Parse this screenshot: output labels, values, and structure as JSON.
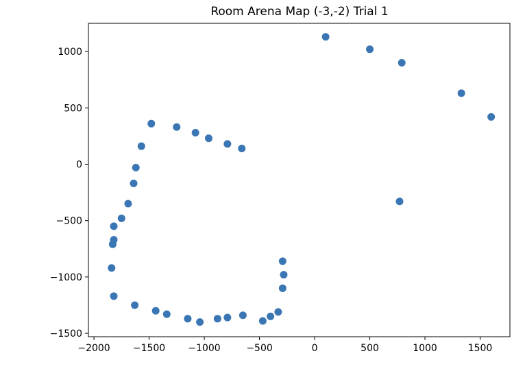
{
  "chart_data": {
    "type": "scatter",
    "title": "Room Arena Map (-3,-2) Trial 1",
    "xlabel": "",
    "ylabel": "",
    "xlim": [
      -2050,
      1770
    ],
    "ylim": [
      -1530,
      1250
    ],
    "grid": false,
    "xticks": [
      -2000,
      -1500,
      -1000,
      -500,
      0,
      500,
      1000,
      1500
    ],
    "yticks": [
      -1500,
      -1000,
      -500,
      0,
      500,
      1000
    ],
    "xtick_labels": [
      "−2000",
      "−1500",
      "−1000",
      "−500",
      "0",
      "500",
      "1000",
      "1500"
    ],
    "ytick_labels": [
      "−1500",
      "−1000",
      "−500",
      "0",
      "500",
      "1000"
    ],
    "marker_color": "#3a76b3",
    "points": [
      {
        "x": 100,
        "y": 1130
      },
      {
        "x": 500,
        "y": 1020
      },
      {
        "x": 790,
        "y": 900
      },
      {
        "x": 1330,
        "y": 630
      },
      {
        "x": 1600,
        "y": 420
      },
      {
        "x": 770,
        "y": -330
      },
      {
        "x": -1480,
        "y": 360
      },
      {
        "x": -1250,
        "y": 330
      },
      {
        "x": -1080,
        "y": 280
      },
      {
        "x": -960,
        "y": 230
      },
      {
        "x": -790,
        "y": 180
      },
      {
        "x": -660,
        "y": 140
      },
      {
        "x": -1570,
        "y": 160
      },
      {
        "x": -1620,
        "y": -30
      },
      {
        "x": -1640,
        "y": -170
      },
      {
        "x": -1690,
        "y": -350
      },
      {
        "x": -1750,
        "y": -480
      },
      {
        "x": -1820,
        "y": -550
      },
      {
        "x": -1820,
        "y": -670
      },
      {
        "x": -1830,
        "y": -710
      },
      {
        "x": -1840,
        "y": -920
      },
      {
        "x": -1820,
        "y": -1170
      },
      {
        "x": -1630,
        "y": -1250
      },
      {
        "x": -1440,
        "y": -1300
      },
      {
        "x": -1340,
        "y": -1330
      },
      {
        "x": -1150,
        "y": -1370
      },
      {
        "x": -1040,
        "y": -1400
      },
      {
        "x": -880,
        "y": -1370
      },
      {
        "x": -790,
        "y": -1360
      },
      {
        "x": -650,
        "y": -1340
      },
      {
        "x": -470,
        "y": -1390
      },
      {
        "x": -400,
        "y": -1350
      },
      {
        "x": -330,
        "y": -1310
      },
      {
        "x": -290,
        "y": -860
      },
      {
        "x": -280,
        "y": -980
      },
      {
        "x": -290,
        "y": -1100
      }
    ]
  }
}
